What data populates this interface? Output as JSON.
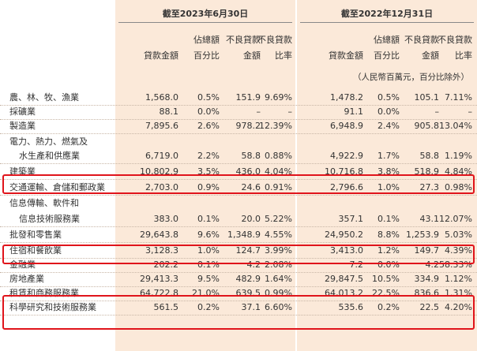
{
  "periods": {
    "a": "截至2023年6月30日",
    "b": "截至2022年12月31日"
  },
  "column_headers": {
    "a": [
      {
        "l1": "",
        "l2": "貸款金額"
      },
      {
        "l1": "佔總額",
        "l2": "百分比"
      },
      {
        "l1": "不良貸款",
        "l2": "金額"
      },
      {
        "l1": "不良貸款",
        "l2": "比率"
      }
    ],
    "b": [
      {
        "l1": "",
        "l2": "貸款金額"
      },
      {
        "l1": "佔總額",
        "l2": "百分比"
      },
      {
        "l1": "不良貸款",
        "l2": "金額"
      },
      {
        "l1": "不良貸款",
        "l2": "比率"
      }
    ]
  },
  "unit_note": "（人民幣百萬元，百分比除外）",
  "rows": [
    {
      "label": "農、林、牧、漁業",
      "values": [
        "1,568.0",
        "0.5%",
        "151.9",
        "9.69%",
        "1,478.2",
        "0.5%",
        "105.1",
        "7.11%"
      ]
    },
    {
      "label": "採礦業",
      "values": [
        "88.1",
        "0.0%",
        "–",
        "–",
        "91.1",
        "0.0%",
        "–",
        "–"
      ]
    },
    {
      "label": "製造業",
      "values": [
        "7,895.6",
        "2.6%",
        "978.2",
        "12.39%",
        "6,948.9",
        "2.4%",
        "905.8",
        "13.04%"
      ]
    },
    {
      "label": "電力、熱力、燃氣及",
      "values": [
        "",
        "",
        "",
        "",
        "",
        "",
        "",
        ""
      ]
    },
    {
      "label": "水生產和供應業",
      "sub": true,
      "values": [
        "6,719.0",
        "2.2%",
        "58.8",
        "0.88%",
        "4,922.9",
        "1.7%",
        "58.8",
        "1.19%"
      ]
    },
    {
      "label": "建築業",
      "values": [
        "10,802.9",
        "3.5%",
        "436.0",
        "4.04%",
        "10,716.8",
        "3.8%",
        "518.9",
        "4.84%"
      ]
    },
    {
      "label": "交通運輸、倉儲和郵政業",
      "values": [
        "2,703.0",
        "0.9%",
        "24.6",
        "0.91%",
        "2,796.6",
        "1.0%",
        "27.3",
        "0.98%"
      ]
    },
    {
      "label": "信息傳輸、軟件和",
      "values": [
        "",
        "",
        "",
        "",
        "",
        "",
        "",
        ""
      ]
    },
    {
      "label": "信息技術服務業",
      "sub": true,
      "values": [
        "383.0",
        "0.1%",
        "20.0",
        "5.22%",
        "357.1",
        "0.1%",
        "43.1",
        "12.07%"
      ]
    },
    {
      "label": "批發和零售業",
      "values": [
        "29,643.8",
        "9.6%",
        "1,348.9",
        "4.55%",
        "24,950.2",
        "8.8%",
        "1,253.9",
        "5.03%"
      ]
    },
    {
      "label": "住宿和餐飲業",
      "values": [
        "3,128.3",
        "1.0%",
        "124.7",
        "3.99%",
        "3,413.0",
        "1.2%",
        "149.7",
        "4.39%"
      ]
    },
    {
      "label": "金融業",
      "values": [
        "202.2",
        "0.1%",
        "4.2",
        "2.08%",
        "7.2",
        "0.0%",
        "4.2",
        "58.33%"
      ]
    },
    {
      "label": "房地產業",
      "values": [
        "29,413.3",
        "9.5%",
        "482.9",
        "1.64%",
        "29,847.5",
        "10.5%",
        "334.9",
        "1.12%"
      ]
    },
    {
      "label": "租賃和商務服務業",
      "values": [
        "64,722.8",
        "21.0%",
        "639.5",
        "0.99%",
        "64,013.2",
        "22.5%",
        "836.6",
        "1.31%"
      ]
    },
    {
      "label": "科學研究和技術服務業",
      "values": [
        "561.5",
        "0.2%",
        "37.1",
        "6.60%",
        "535.6",
        "0.2%",
        "22.5",
        "4.20%"
      ]
    }
  ]
}
